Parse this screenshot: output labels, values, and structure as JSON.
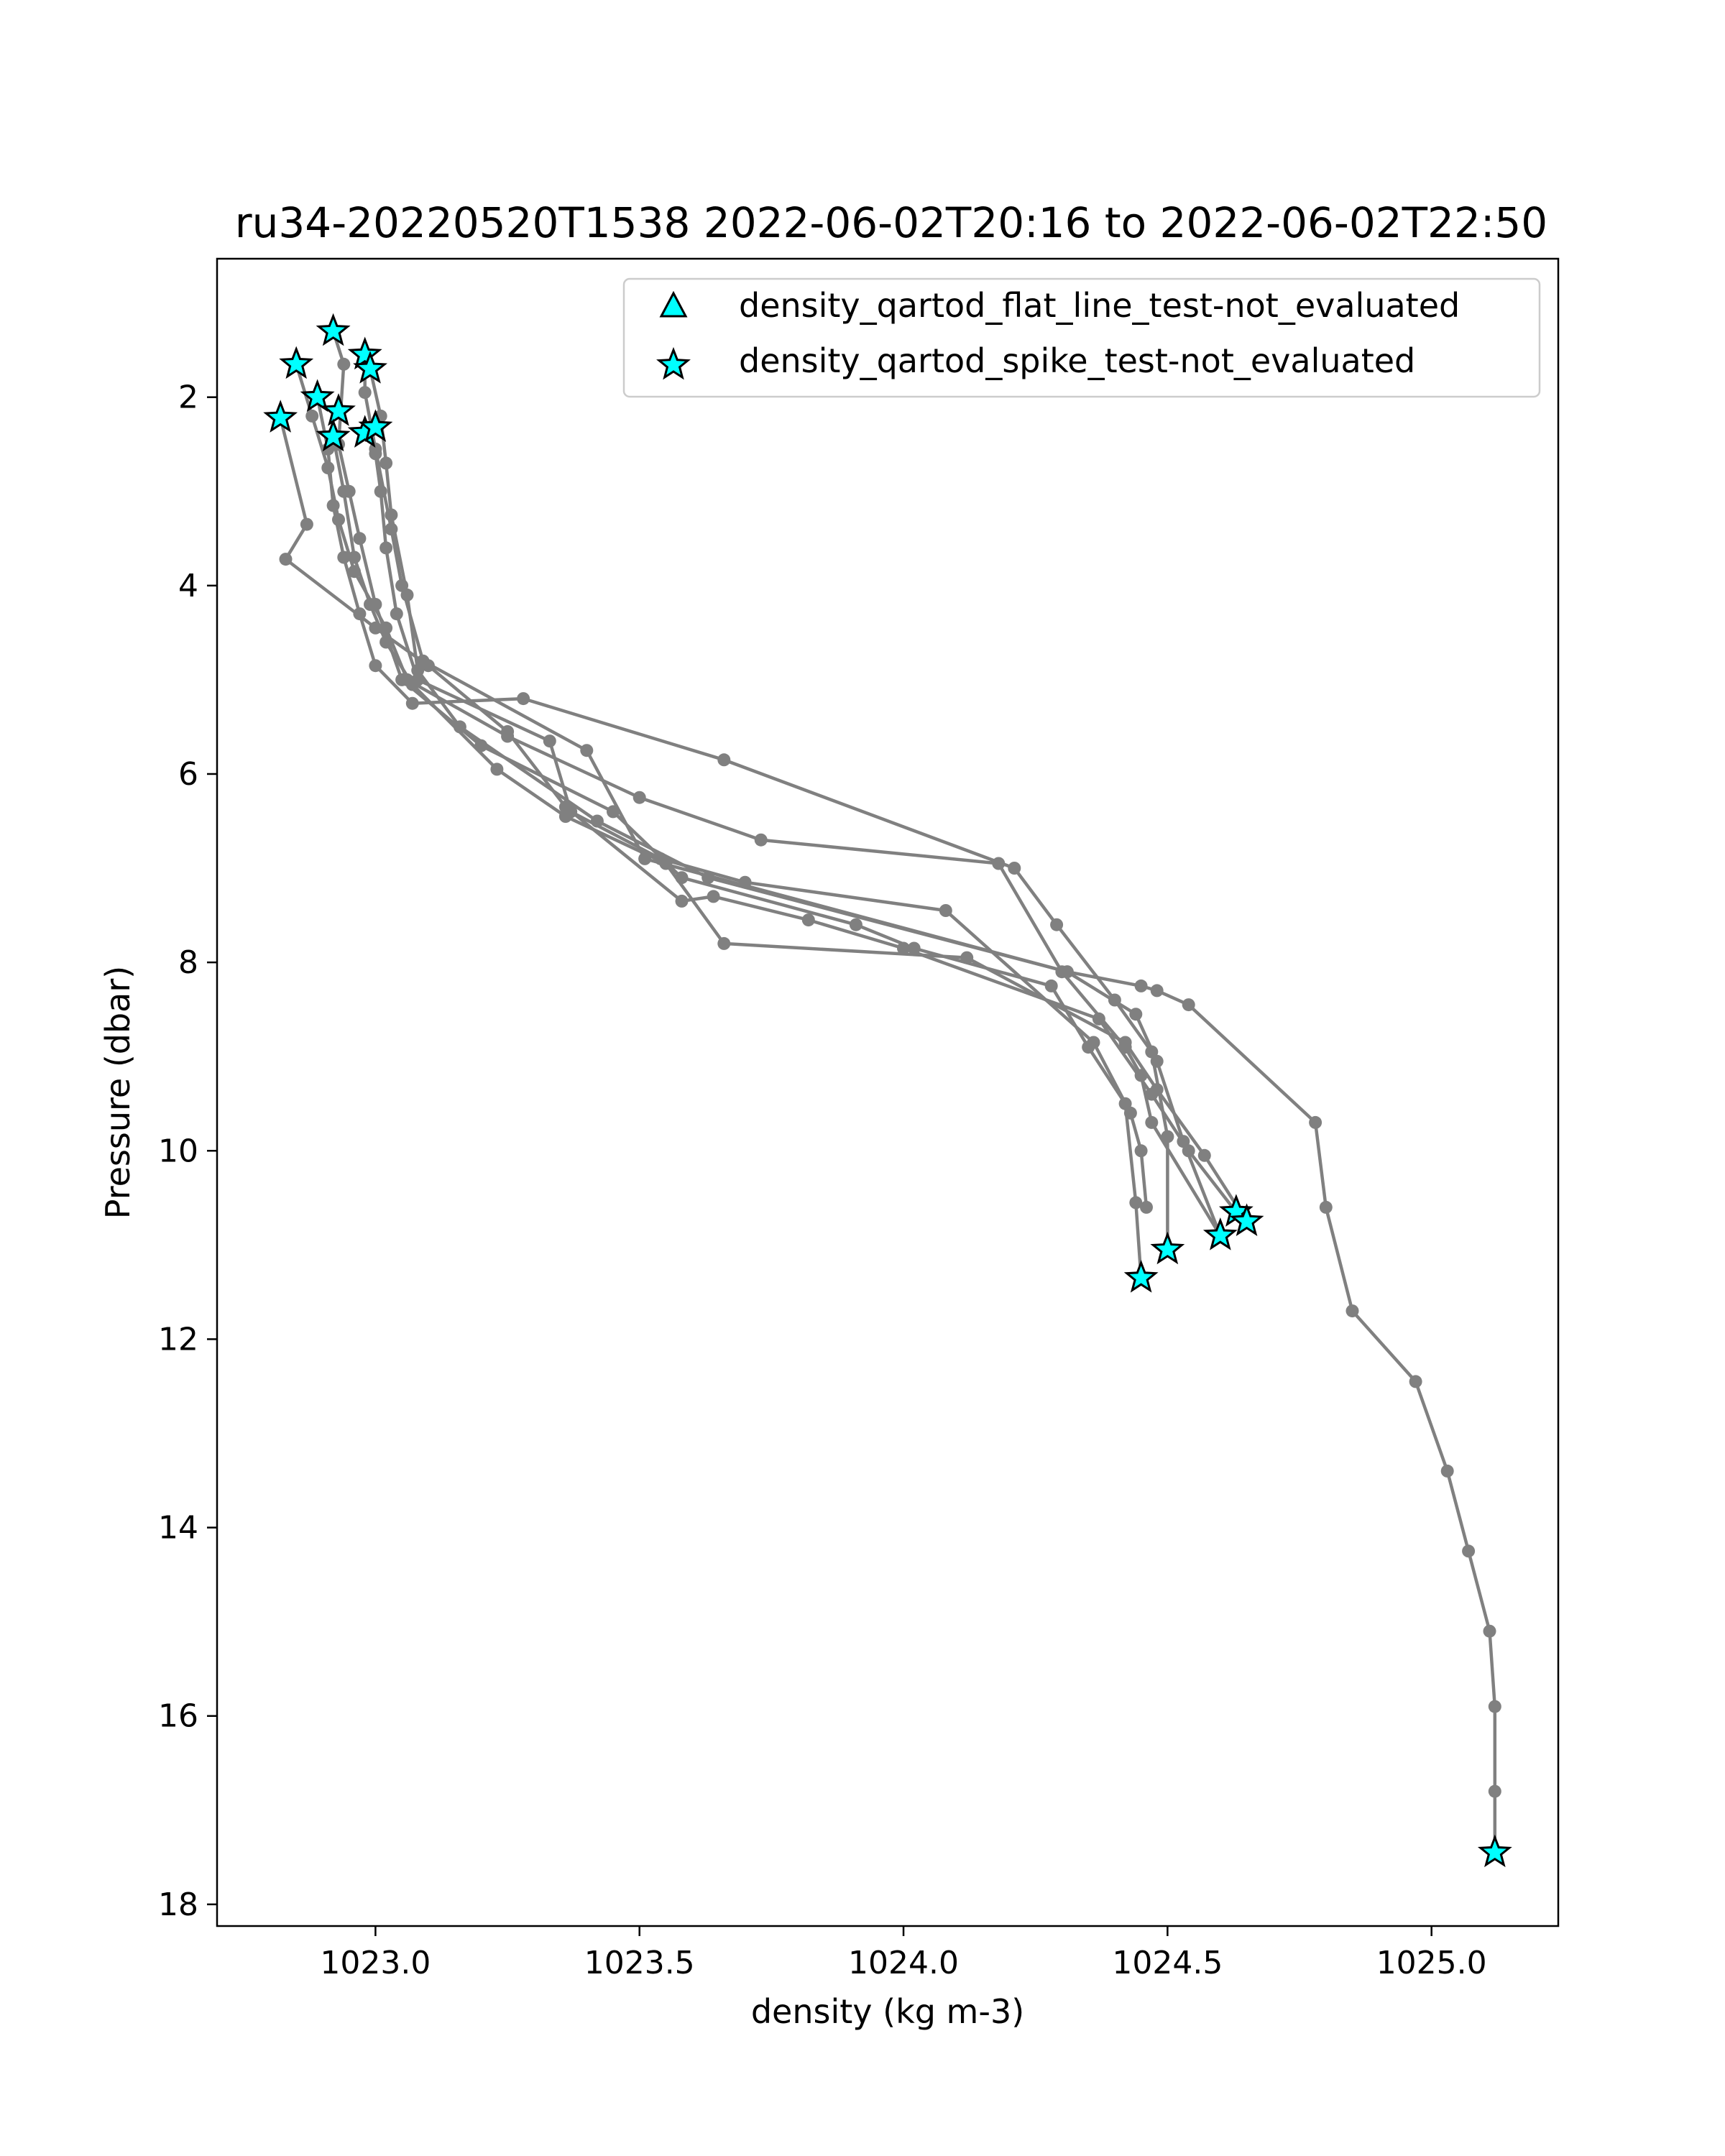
{
  "chart_data": {
    "type": "line",
    "title": "ru34-20220520T1538 2022-06-02T20:16 to 2022-06-02T22:50",
    "xlabel": "density (kg m-3)",
    "ylabel": "Pressure (dbar)",
    "xlim": [
      1022.7,
      1025.24
    ],
    "ylim": [
      18.23,
      0.53
    ],
    "y_inverted": true,
    "x_ticks": [
      1023.0,
      1023.5,
      1024.0,
      1024.5,
      1025.0
    ],
    "x_tick_labels": [
      "1023.0",
      "1023.5",
      "1024.0",
      "1024.5",
      "1025.0"
    ],
    "y_ticks": [
      2,
      4,
      6,
      8,
      10,
      12,
      14,
      16,
      18
    ],
    "y_tick_labels": [
      "2",
      "4",
      "6",
      "8",
      "10",
      "12",
      "14",
      "16",
      "18"
    ],
    "grid": false,
    "legend_position": "top-right",
    "line_color": "#808080",
    "marker_color": "#00ffff",
    "legend": [
      {
        "label": "density_qartod_flat_line_test-not_evaluated",
        "marker": "triangle"
      },
      {
        "label": "density_qartod_spike_test-not_evaluated",
        "marker": "star"
      }
    ],
    "series": [
      {
        "x": [
          1022.92,
          1022.94,
          1022.93,
          1022.95,
          1022.97,
          1023.0,
          1023.05,
          1023.2,
          1023.45,
          1023.58,
          1023.91,
          1024.02,
          1024.28,
          1024.35,
          1024.42,
          1024.44,
          1024.45
        ],
        "y": [
          1.3,
          1.65,
          2.5,
          3.0,
          3.5,
          4.2,
          5.0,
          5.7,
          6.4,
          7.1,
          7.6,
          7.85,
          8.25,
          8.9,
          9.5,
          10.55,
          11.35
        ]
      },
      {
        "x": [
          1022.85,
          1022.88,
          1022.91,
          1022.93,
          1022.96,
          1023.02,
          1023.06,
          1023.25,
          1023.5,
          1023.73,
          1024.18,
          1024.3,
          1024.42,
          1024.45,
          1024.47,
          1024.6
        ],
        "y": [
          1.65,
          2.2,
          2.75,
          3.3,
          3.85,
          4.45,
          5.0,
          5.6,
          6.25,
          6.7,
          6.95,
          8.1,
          8.9,
          9.2,
          9.7,
          10.9
        ]
      },
      {
        "x": [
          1022.89,
          1022.91,
          1022.92,
          1022.94,
          1022.97,
          1023.0,
          1023.07,
          1023.28,
          1023.66,
          1024.21,
          1024.29,
          1024.4,
          1024.47,
          1024.5,
          1024.5
        ],
        "y": [
          2.0,
          2.55,
          3.15,
          3.7,
          4.3,
          4.85,
          5.25,
          5.2,
          5.85,
          7.0,
          7.6,
          8.4,
          8.95,
          9.85,
          11.05
        ]
      },
      {
        "x": [
          1022.82,
          1022.87,
          1022.83,
          1023.0,
          1023.1,
          1023.25,
          1023.36,
          1023.58,
          1023.64,
          1023.82,
          1024.0,
          1024.37,
          1024.47,
          1024.54,
          1024.63
        ],
        "y": [
          2.22,
          3.35,
          3.72,
          4.45,
          4.85,
          5.55,
          6.35,
          7.35,
          7.3,
          7.55,
          7.85,
          8.6,
          9.4,
          10.0,
          10.65
        ]
      },
      {
        "x": [
          1022.92,
          1022.94,
          1022.96,
          1022.99,
          1023.02,
          1023.07,
          1023.23,
          1023.36,
          1023.55,
          1023.66,
          1024.12,
          1024.42,
          1024.48,
          1024.57,
          1024.65
        ],
        "y": [
          2.42,
          3.0,
          3.7,
          4.2,
          4.6,
          5.05,
          5.95,
          6.45,
          6.95,
          7.8,
          7.95,
          8.85,
          9.35,
          10.05,
          10.75
        ]
      },
      {
        "x": [
          1022.98,
          1022.98,
          1023.0,
          1023.03,
          1023.05,
          1023.09,
          1023.4,
          1023.51,
          1024.31,
          1024.44,
          1024.48,
          1024.53,
          1024.6
        ],
        "y": [
          1.55,
          1.95,
          2.55,
          3.4,
          4.0,
          4.8,
          5.75,
          6.9,
          8.1,
          8.55,
          9.05,
          9.9,
          10.9
        ]
      },
      {
        "x": [
          1022.99,
          1023.01,
          1023.02,
          1023.03,
          1023.06,
          1023.08,
          1023.16,
          1023.42,
          1023.63,
          1024.31,
          1024.45,
          1024.48,
          1024.54,
          1024.78,
          1024.8,
          1024.85,
          1024.97,
          1025.03,
          1025.07,
          1025.11,
          1025.12,
          1025.12,
          1025.12
        ],
        "y": [
          1.7,
          2.2,
          2.7,
          3.25,
          4.1,
          4.9,
          5.5,
          6.5,
          7.1,
          8.1,
          8.25,
          8.3,
          8.45,
          9.7,
          10.6,
          11.7,
          12.45,
          13.4,
          14.25,
          15.1,
          15.9,
          16.8,
          17.45
        ]
      },
      {
        "x": [
          1022.99,
          1023.0,
          1023.01,
          1023.02,
          1023.04,
          1023.08,
          1023.33,
          1023.37,
          1023.54,
          1023.7,
          1024.08,
          1024.36,
          1024.43,
          1024.45,
          1024.46
        ],
        "y": [
          2.32,
          2.6,
          3.0,
          3.6,
          4.3,
          5.0,
          5.65,
          6.4,
          6.9,
          7.15,
          7.45,
          8.85,
          9.6,
          10.0,
          10.6
        ]
      }
    ],
    "star_points": [
      {
        "x": 1022.92,
        "y": 1.3
      },
      {
        "x": 1022.85,
        "y": 1.65
      },
      {
        "x": 1022.98,
        "y": 1.55
      },
      {
        "x": 1022.99,
        "y": 1.7
      },
      {
        "x": 1022.89,
        "y": 2.0
      },
      {
        "x": 1022.93,
        "y": 2.15
      },
      {
        "x": 1022.82,
        "y": 2.22
      },
      {
        "x": 1022.92,
        "y": 2.42
      },
      {
        "x": 1022.98,
        "y": 2.38
      },
      {
        "x": 1023.0,
        "y": 2.32
      },
      {
        "x": 1024.63,
        "y": 10.65
      },
      {
        "x": 1024.65,
        "y": 10.75
      },
      {
        "x": 1024.6,
        "y": 10.9
      },
      {
        "x": 1024.5,
        "y": 11.05
      },
      {
        "x": 1024.45,
        "y": 11.35
      },
      {
        "x": 1025.12,
        "y": 17.45
      }
    ]
  }
}
